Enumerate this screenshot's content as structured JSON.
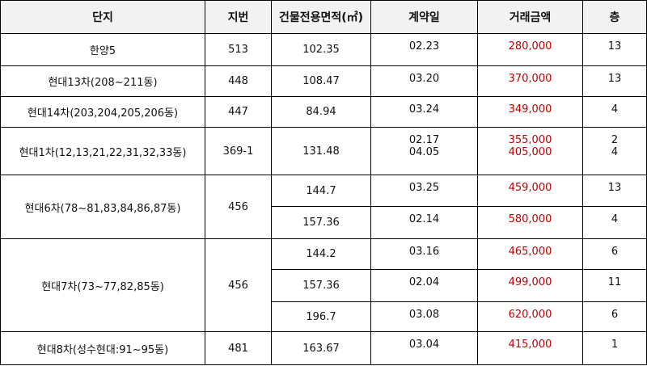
{
  "header": [
    "단지",
    "지번",
    "건물전용면적(㎡)",
    "계약일",
    "거래금액",
    "층"
  ],
  "groups": [
    {
      "complex": "한양5",
      "lot": "513",
      "entries": [
        {
          "area": "102.35",
          "deals": [
            {
              "date": "02.23",
              "price": "280,000",
              "floor": "13"
            }
          ]
        }
      ]
    },
    {
      "complex": "현대13차(208~211동)",
      "lot": "448",
      "entries": [
        {
          "area": "108.47",
          "deals": [
            {
              "date": "03.20",
              "price": "370,000",
              "floor": "13"
            }
          ]
        }
      ]
    },
    {
      "complex": "현대14차(203,204,205,206동)",
      "lot": "447",
      "entries": [
        {
          "area": "84.94",
          "deals": [
            {
              "date": "03.24",
              "price": "349,000",
              "floor": "4"
            }
          ]
        }
      ]
    },
    {
      "complex": "현대1차(12,13,21,22,31,32,33동)",
      "lot": "369-1",
      "entries": [
        {
          "area": "131.48",
          "deals": [
            {
              "date": "02.17",
              "price": "355,000",
              "floor": "2"
            },
            {
              "date": "04.05",
              "price": "405,000",
              "floor": "4"
            }
          ]
        }
      ]
    },
    {
      "complex": "현대6차(78~81,83,84,86,87동)",
      "lot": "456",
      "entries": [
        {
          "area": "144.7",
          "deals": [
            {
              "date": "03.25",
              "price": "459,000",
              "floor": "13"
            }
          ]
        },
        {
          "area": "157.36",
          "deals": [
            {
              "date": "02.14",
              "price": "580,000",
              "floor": "4"
            }
          ]
        }
      ]
    },
    {
      "complex": "현대7차(73~77,82,85동)",
      "lot": "456",
      "entries": [
        {
          "area": "144.2",
          "deals": [
            {
              "date": "03.16",
              "price": "465,000",
              "floor": "6"
            }
          ]
        },
        {
          "area": "157.36",
          "deals": [
            {
              "date": "02.04",
              "price": "499,000",
              "floor": "11"
            }
          ]
        },
        {
          "area": "196.7",
          "deals": [
            {
              "date": "03.08",
              "price": "620,000",
              "floor": "6"
            }
          ]
        }
      ]
    },
    {
      "complex": "현대8차(성수현대:91~95동)",
      "lot": "481",
      "entries": [
        {
          "area": "163.67",
          "deals": [
            {
              "date": "03.04",
              "price": "415,000",
              "floor": "1"
            }
          ]
        }
      ]
    }
  ]
}
